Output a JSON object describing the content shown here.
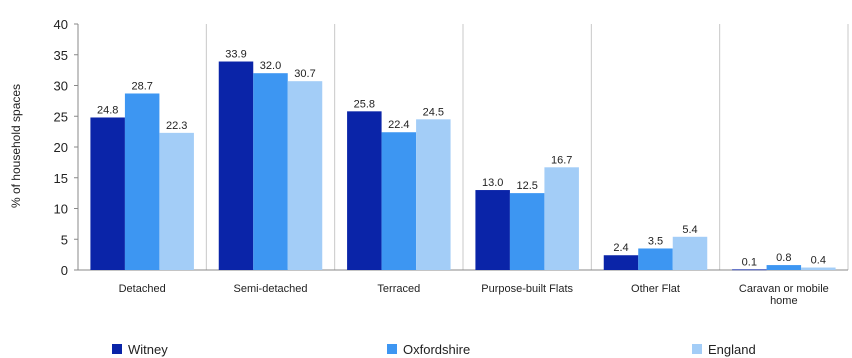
{
  "chart_data": {
    "type": "bar",
    "ylabel": "% of household spaces",
    "ylim": [
      0,
      40
    ],
    "yticks": [
      0,
      5,
      10,
      15,
      20,
      25,
      30,
      35,
      40
    ],
    "grid": "vertical category separators",
    "legend_position": "bottom",
    "categories": [
      [
        "Detached"
      ],
      [
        "Semi-detached"
      ],
      [
        "Terraced"
      ],
      [
        "Purpose-built Flats"
      ],
      [
        "Other Flat"
      ],
      [
        "Caravan or mobile",
        "home"
      ]
    ],
    "series": [
      {
        "name": "Witney",
        "color": "#0a24a8",
        "values": [
          24.8,
          33.9,
          25.8,
          13.0,
          2.4,
          0.1
        ]
      },
      {
        "name": "Oxfordshire",
        "color": "#3d96f2",
        "values": [
          28.7,
          32.0,
          22.4,
          12.5,
          3.5,
          0.8
        ]
      },
      {
        "name": "England",
        "color": "#a3cdf7",
        "values": [
          22.3,
          30.7,
          24.5,
          16.7,
          5.4,
          0.4
        ]
      }
    ]
  }
}
